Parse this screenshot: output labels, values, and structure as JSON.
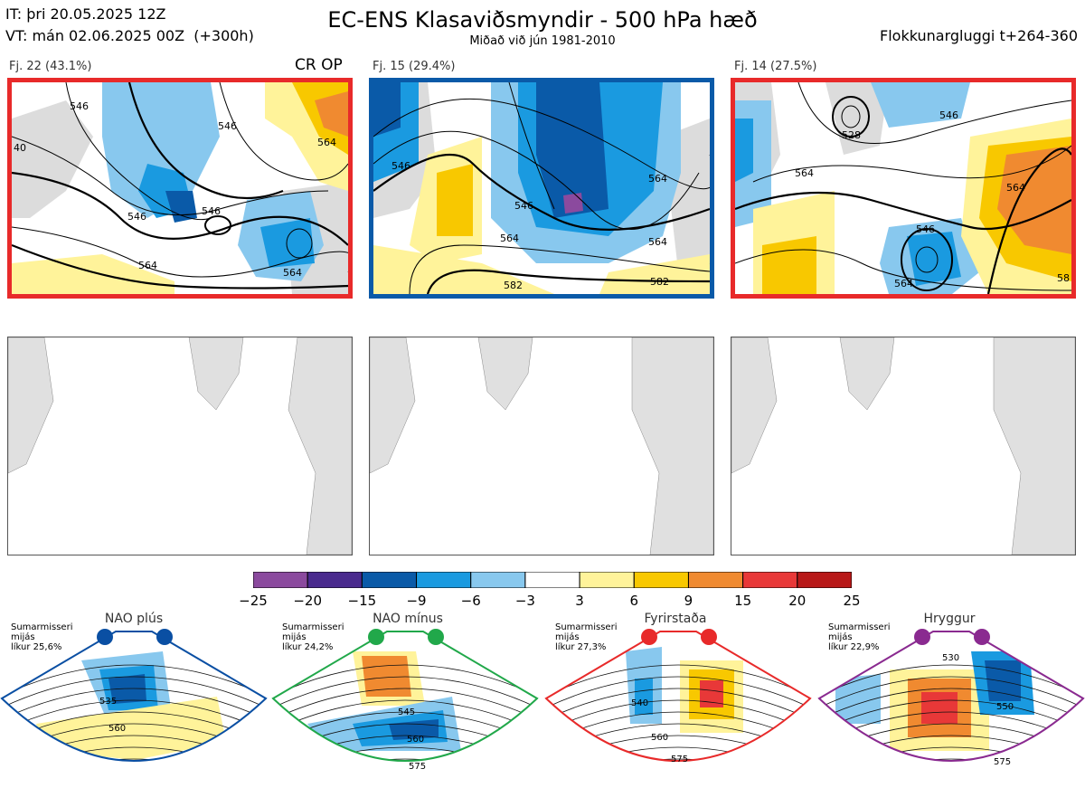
{
  "header": {
    "init_time": "IT: þri 20.05.2025 12Z",
    "valid_time": "VT: mán 02.06.2025 00Z  (+300h)",
    "title": "EC-ENS Klasaviðsmyndir - 500 hPa hæð",
    "subtitle": "Miðað við jún 1981-2010",
    "window": "Flokkunargluggi t+264-360"
  },
  "clusters": [
    {
      "label": "Fj. 22 (43.1%)",
      "tag": "CR OP",
      "border_color": "#e82a2a",
      "contour_labels": [
        "546",
        "546",
        "564",
        "564",
        "546",
        "564",
        "546",
        "40"
      ]
    },
    {
      "label": "Fj. 15 (29.4%)",
      "tag": "",
      "border_color": "#0a5aa8",
      "contour_labels": [
        "546",
        "564",
        "564",
        "546",
        "564",
        "582",
        "582"
      ]
    },
    {
      "label": "Fj. 14 (27.5%)",
      "tag": "",
      "border_color": "#e82a2a",
      "contour_labels": [
        "546",
        "528",
        "564",
        "546",
        "564",
        "564",
        "58"
      ]
    }
  ],
  "colorbar": {
    "colors": [
      "#8b4a9e",
      "#4a2a8e",
      "#0a5aa8",
      "#1a9ae0",
      "#88c8ee",
      "#ffffff",
      "#fff39a",
      "#f8c800",
      "#f08a30",
      "#e83838",
      "#b81818"
    ],
    "ticks": [
      "−25",
      "−20",
      "−15",
      "−9",
      "−6",
      "−3",
      "3",
      "6",
      "9",
      "15",
      "20",
      "25"
    ]
  },
  "regimes": [
    {
      "name": "NAO plús",
      "season": "Sumarmisseri",
      "mean": "mijás",
      "prob": "líkur 25,6%",
      "color": "#0a4fa3",
      "labels": [
        "535",
        "560"
      ]
    },
    {
      "name": "NAO mínus",
      "season": "Sumarmisseri",
      "mean": "mijás",
      "prob": "líkur 24,2%",
      "color": "#21a84a",
      "labels": [
        "545",
        "560",
        "575"
      ]
    },
    {
      "name": "Fyrirstaða",
      "season": "Sumarmisseri",
      "mean": "mijás",
      "prob": "líkur 27,3%",
      "color": "#e82a2a",
      "labels": [
        "540",
        "560",
        "575"
      ]
    },
    {
      "name": "Hryggur",
      "season": "Sumarmisseri",
      "mean": "mijás",
      "prob": "líkur 22,9%",
      "color": "#8a2a90",
      "labels": [
        "530",
        "550",
        "575"
      ]
    }
  ]
}
